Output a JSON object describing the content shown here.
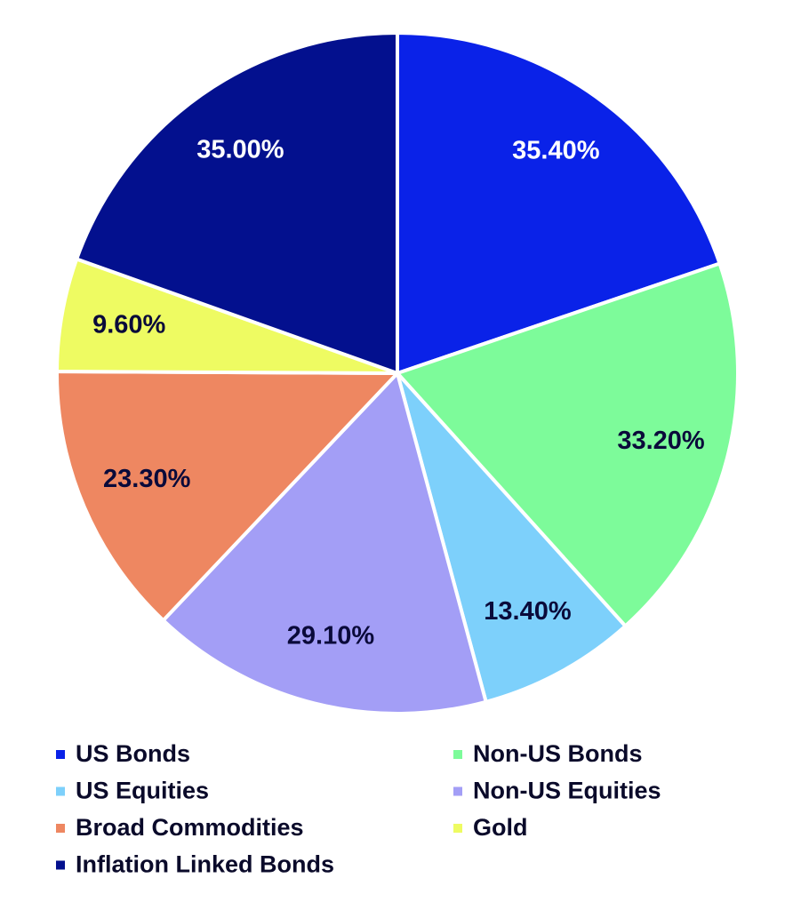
{
  "chart_data": {
    "type": "pie",
    "categories": [
      "US Bonds",
      "Non-US Bonds",
      "US Equities",
      "Non-US Equities",
      "Broad Commodities",
      "Gold",
      "Inflation Linked Bonds"
    ],
    "values": [
      35.4,
      33.2,
      13.4,
      29.1,
      23.3,
      9.6,
      35.0
    ],
    "value_labels": [
      "35.40%",
      "33.20%",
      "13.40%",
      "29.10%",
      "23.30%",
      "9.60%",
      "35.00%"
    ],
    "colors": [
      "#0a22e8",
      "#7dfb9a",
      "#7dd0fb",
      "#a39ef6",
      "#ee8761",
      "#eefb62",
      "#03108e"
    ],
    "legend": "bottom"
  }
}
